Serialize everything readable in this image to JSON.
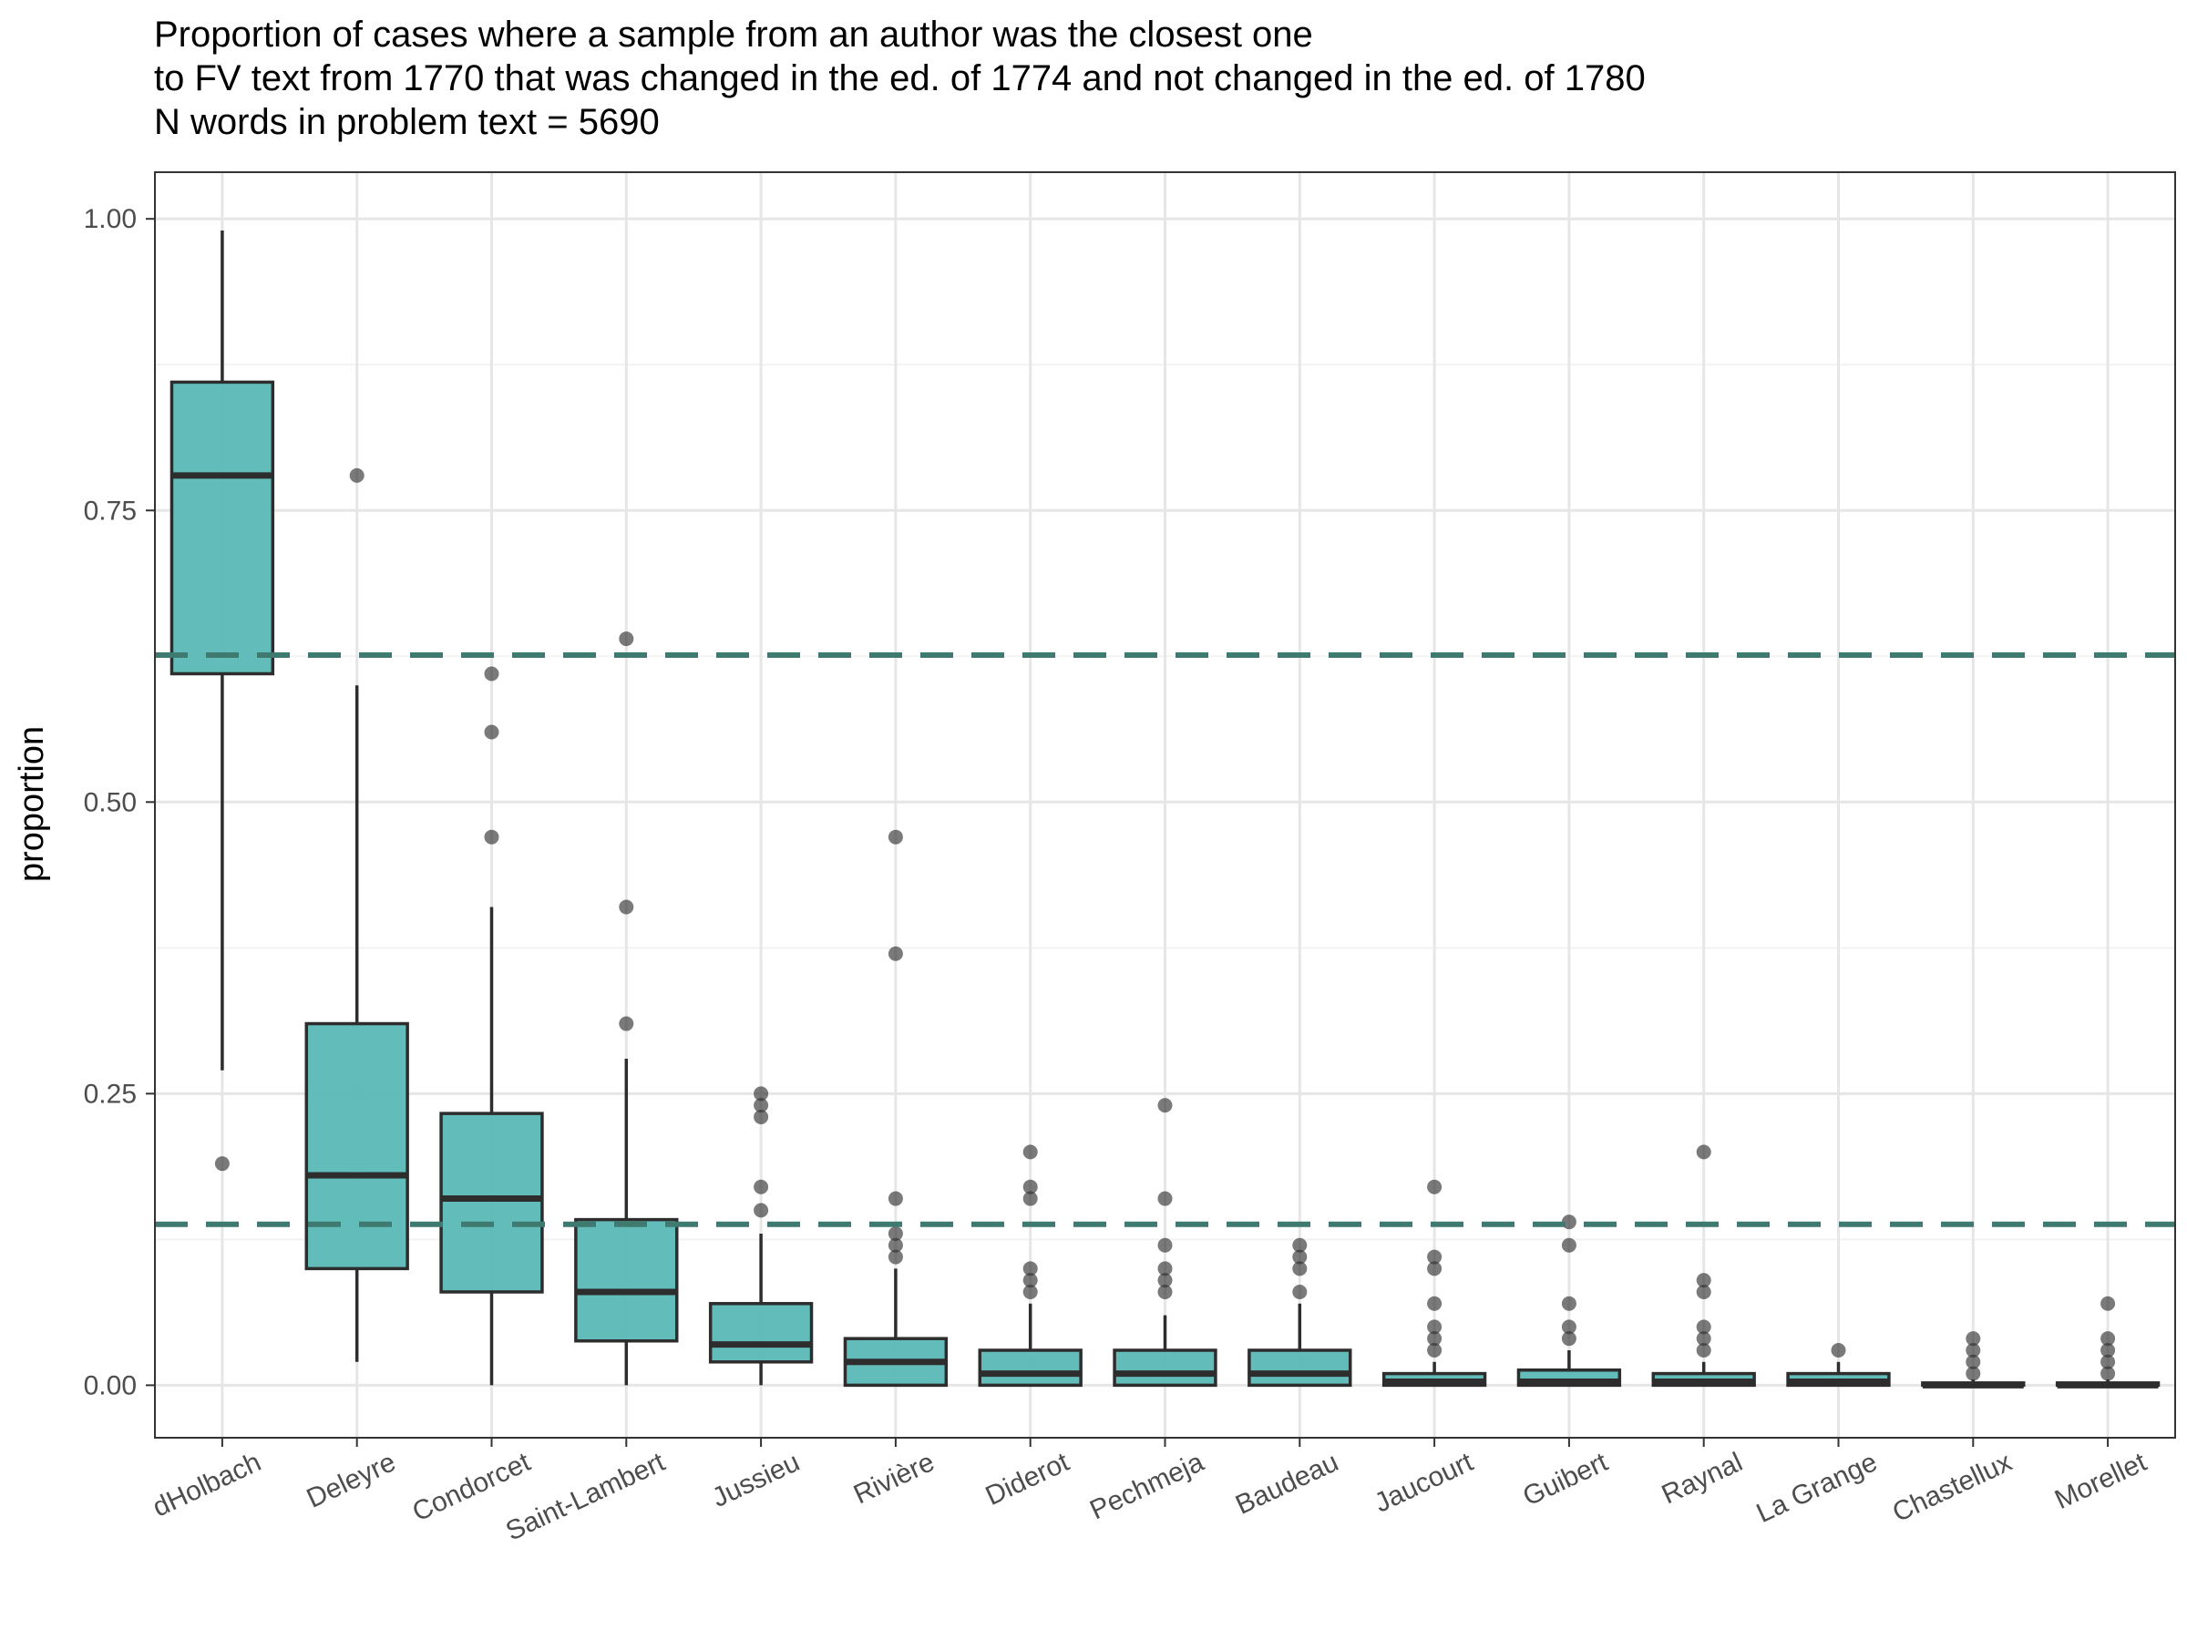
{
  "title_lines": [
    "Proportion of cases where a sample from an author was the closest one",
    "to FV text from 1770 that was changed in the ed. of 1774 and not changed in the ed. of 1780",
    "N words in problem text = 5690"
  ],
  "colors": {
    "box_fill": "#5ab9b6",
    "box_stroke": "#2d2d2d",
    "hline": "#3f7a70",
    "outlier": "#333333",
    "grid_major": "#e6e6e6",
    "grid_minor": "#f2f2f2"
  },
  "chart_data": {
    "type": "box",
    "title": "Proportion of cases where a sample from an author was the closest one to FV text from 1770 that was changed in the ed. of 1774 and not changed in the ed. of 1780 N words in problem text = 5690",
    "xlabel": "",
    "ylabel": "proportion",
    "ylim": [
      -0.045,
      1.04
    ],
    "yticks": [
      0.0,
      0.25,
      0.5,
      0.75,
      1.0
    ],
    "ytick_labels": [
      "0.00",
      "0.25",
      "0.50",
      "0.75",
      "1.00"
    ],
    "grid": true,
    "reference_lines": [
      {
        "y": 0.626,
        "style": "dashed"
      },
      {
        "y": 0.138,
        "style": "dashed"
      }
    ],
    "categories": [
      "dHolbach",
      "Deleyre",
      "Condorcet",
      "Saint-Lambert",
      "Jussieu",
      "Rivière",
      "Diderot",
      "Pechmeja",
      "Baudeau",
      "Jaucourt",
      "Guibert",
      "Raynal",
      "La Grange",
      "Chastellux",
      "Morellet"
    ],
    "boxes": [
      {
        "q1": 0.61,
        "median": 0.78,
        "q3": 0.86,
        "whisker_low": 0.27,
        "whisker_high": 0.99,
        "outliers": [
          0.19
        ]
      },
      {
        "q1": 0.1,
        "median": 0.18,
        "q3": 0.31,
        "whisker_low": 0.02,
        "whisker_high": 0.6,
        "outliers": [
          0.78
        ]
      },
      {
        "q1": 0.08,
        "median": 0.16,
        "q3": 0.233,
        "whisker_low": 0.0,
        "whisker_high": 0.41,
        "outliers": [
          0.61,
          0.56,
          0.47
        ]
      },
      {
        "q1": 0.038,
        "median": 0.08,
        "q3": 0.142,
        "whisker_low": 0.0,
        "whisker_high": 0.28,
        "outliers": [
          0.64,
          0.41,
          0.31
        ]
      },
      {
        "q1": 0.02,
        "median": 0.035,
        "q3": 0.07,
        "whisker_low": 0.0,
        "whisker_high": 0.13,
        "outliers": [
          0.25,
          0.24,
          0.23,
          0.17,
          0.15
        ]
      },
      {
        "q1": 0.0,
        "median": 0.02,
        "q3": 0.04,
        "whisker_low": 0.0,
        "whisker_high": 0.1,
        "outliers": [
          0.47,
          0.37,
          0.16,
          0.13,
          0.12,
          0.11
        ]
      },
      {
        "q1": 0.0,
        "median": 0.01,
        "q3": 0.03,
        "whisker_low": 0.0,
        "whisker_high": 0.07,
        "outliers": [
          0.2,
          0.17,
          0.16,
          0.1,
          0.09,
          0.08
        ]
      },
      {
        "q1": 0.0,
        "median": 0.01,
        "q3": 0.03,
        "whisker_low": 0.0,
        "whisker_high": 0.06,
        "outliers": [
          0.24,
          0.16,
          0.12,
          0.1,
          0.09,
          0.08
        ]
      },
      {
        "q1": 0.0,
        "median": 0.01,
        "q3": 0.03,
        "whisker_low": 0.0,
        "whisker_high": 0.07,
        "outliers": [
          0.12,
          0.11,
          0.1,
          0.08
        ]
      },
      {
        "q1": 0.0,
        "median": 0.003,
        "q3": 0.01,
        "whisker_low": 0.0,
        "whisker_high": 0.02,
        "outliers": [
          0.17,
          0.11,
          0.1,
          0.07,
          0.05,
          0.04,
          0.03
        ]
      },
      {
        "q1": 0.0,
        "median": 0.003,
        "q3": 0.013,
        "whisker_low": 0.0,
        "whisker_high": 0.03,
        "outliers": [
          0.14,
          0.12,
          0.07,
          0.05,
          0.04
        ]
      },
      {
        "q1": 0.0,
        "median": 0.003,
        "q3": 0.01,
        "whisker_low": 0.0,
        "whisker_high": 0.02,
        "outliers": [
          0.2,
          0.09,
          0.08,
          0.05,
          0.04,
          0.03
        ]
      },
      {
        "q1": 0.0,
        "median": 0.003,
        "q3": 0.01,
        "whisker_low": 0.0,
        "whisker_high": 0.02,
        "outliers": [
          0.03
        ]
      },
      {
        "q1": 0.0,
        "median": 0.0,
        "q3": 0.002,
        "whisker_low": 0.0,
        "whisker_high": 0.005,
        "outliers": [
          0.04,
          0.03,
          0.02,
          0.01
        ]
      },
      {
        "q1": 0.0,
        "median": 0.0,
        "q3": 0.002,
        "whisker_low": 0.0,
        "whisker_high": 0.005,
        "outliers": [
          0.07,
          0.04,
          0.03,
          0.02,
          0.01
        ]
      }
    ]
  }
}
